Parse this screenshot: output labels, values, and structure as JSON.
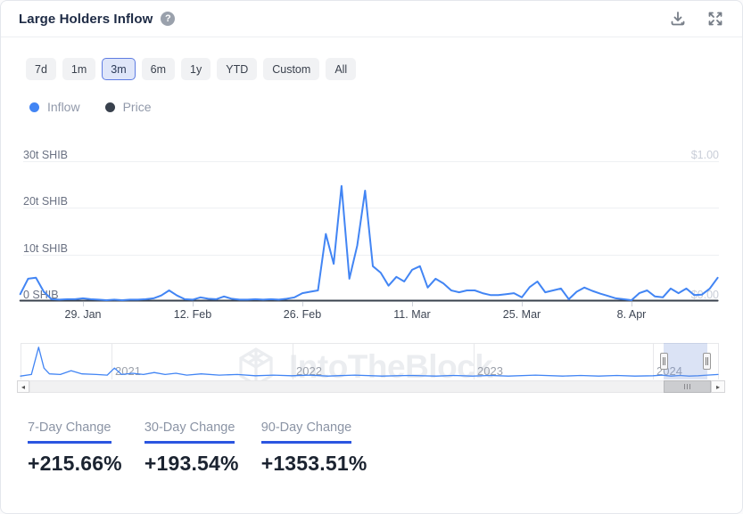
{
  "header": {
    "title": "Large Holders Inflow",
    "help_glyph": "?"
  },
  "toolbar": {
    "ranges": [
      {
        "label": "7d",
        "selected": false
      },
      {
        "label": "1m",
        "selected": false
      },
      {
        "label": "3m",
        "selected": true
      },
      {
        "label": "6m",
        "selected": false
      },
      {
        "label": "1y",
        "selected": false
      },
      {
        "label": "YTD",
        "selected": false
      },
      {
        "label": "Custom",
        "selected": false
      },
      {
        "label": "All",
        "selected": false
      }
    ]
  },
  "legend": [
    {
      "label": "Inflow",
      "color": "#4285f4"
    },
    {
      "label": "Price",
      "color": "#39414d"
    }
  ],
  "watermark": {
    "text": "IntoTheBlock"
  },
  "chart_data": {
    "type": "line",
    "title": "Large Holders Inflow",
    "unit": "SHIB (trillions)",
    "period_shown": "3m (late Jan 2024 - mid Apr 2024, daily points)",
    "ylim": [
      0,
      30
    ],
    "y_ticks": [
      {
        "value": 30,
        "label": "30t SHIB"
      },
      {
        "value": 20,
        "label": "20t SHIB"
      },
      {
        "value": 10,
        "label": "10t SHIB"
      },
      {
        "value": 0,
        "label": "0 SHIB"
      }
    ],
    "y2_axis": {
      "label_top": "$1.00",
      "label_bottom": "$0.00",
      "range": [
        0,
        1
      ]
    },
    "x_ticks": [
      {
        "index": 8,
        "label": "29. Jan"
      },
      {
        "index": 22,
        "label": "12. Feb"
      },
      {
        "index": 36,
        "label": "26. Feb"
      },
      {
        "index": 50,
        "label": "11. Mar"
      },
      {
        "index": 64,
        "label": "25. Mar"
      },
      {
        "index": 78,
        "label": "8. Apr"
      }
    ],
    "series": [
      {
        "name": "Inflow",
        "color": "#4285f4",
        "values_t_shib": [
          1.5,
          4.8,
          5.0,
          2.0,
          0.4,
          0.3,
          0.4,
          0.4,
          0.6,
          0.4,
          0.3,
          0.2,
          0.3,
          0.2,
          0.3,
          0.3,
          0.4,
          0.6,
          1.2,
          2.3,
          1.2,
          0.4,
          0.3,
          0.8,
          0.5,
          0.4,
          1.0,
          0.5,
          0.3,
          0.3,
          0.4,
          0.3,
          0.4,
          0.3,
          0.5,
          0.8,
          1.7,
          2.0,
          2.3,
          14.4,
          8.0,
          24.7,
          4.8,
          11.9,
          23.7,
          7.5,
          6.1,
          3.3,
          5.2,
          4.2,
          6.7,
          7.5,
          2.9,
          4.8,
          3.8,
          2.3,
          1.9,
          2.3,
          2.3,
          1.7,
          1.3,
          1.3,
          1.5,
          1.7,
          0.8,
          3.0,
          4.2,
          1.9,
          2.3,
          2.7,
          0.4,
          2.0,
          2.9,
          2.2,
          1.6,
          1.1,
          0.6,
          0.4,
          0.2,
          1.7,
          2.3,
          1.0,
          0.8,
          2.7,
          1.7,
          2.7,
          1.3,
          1.4,
          2.7,
          5.0
        ]
      },
      {
        "name": "Price",
        "color": "#39414d",
        "axis": "right",
        "note": "flat line at ~$0.00 on the $0-$1 right axis",
        "flat_value_usd": 0.0
      }
    ],
    "navigator": {
      "x_labels": [
        "2021",
        "2022",
        "2023",
        "2024"
      ],
      "x_domain": [
        2020.5,
        2024.365
      ],
      "selection": {
        "from": 2024.06,
        "to": 2024.3
      },
      "points": [
        [
          2020.5,
          0.05
        ],
        [
          2020.56,
          0.1
        ],
        [
          2020.6,
          0.95
        ],
        [
          2020.63,
          0.3
        ],
        [
          2020.66,
          0.12
        ],
        [
          2020.72,
          0.1
        ],
        [
          2020.78,
          0.22
        ],
        [
          2020.84,
          0.12
        ],
        [
          2020.92,
          0.1
        ],
        [
          2020.98,
          0.08
        ],
        [
          2021.02,
          0.3
        ],
        [
          2021.06,
          0.1
        ],
        [
          2021.12,
          0.14
        ],
        [
          2021.18,
          0.1
        ],
        [
          2021.24,
          0.16
        ],
        [
          2021.3,
          0.1
        ],
        [
          2021.36,
          0.14
        ],
        [
          2021.42,
          0.08
        ],
        [
          2021.5,
          0.12
        ],
        [
          2021.6,
          0.08
        ],
        [
          2021.7,
          0.1
        ],
        [
          2021.8,
          0.06
        ],
        [
          2021.9,
          0.08
        ],
        [
          2022.0,
          0.06
        ],
        [
          2022.1,
          0.08
        ],
        [
          2022.2,
          0.05
        ],
        [
          2022.35,
          0.08
        ],
        [
          2022.5,
          0.05
        ],
        [
          2022.65,
          0.07
        ],
        [
          2022.8,
          0.05
        ],
        [
          2022.9,
          0.07
        ],
        [
          2023.0,
          0.05
        ],
        [
          2023.1,
          0.07
        ],
        [
          2023.2,
          0.05
        ],
        [
          2023.35,
          0.08
        ],
        [
          2023.5,
          0.05
        ],
        [
          2023.6,
          0.07
        ],
        [
          2023.7,
          0.05
        ],
        [
          2023.8,
          0.07
        ],
        [
          2023.9,
          0.05
        ],
        [
          2024.0,
          0.06
        ],
        [
          2024.05,
          0.08
        ],
        [
          2024.1,
          0.05
        ],
        [
          2024.15,
          0.07
        ],
        [
          2024.2,
          0.05
        ],
        [
          2024.25,
          0.06
        ],
        [
          2024.3,
          0.08
        ],
        [
          2024.36,
          0.1
        ]
      ]
    }
  },
  "stats": [
    {
      "label": "7-Day Change",
      "value": "+215.66%"
    },
    {
      "label": "30-Day Change",
      "value": "+193.54%"
    },
    {
      "label": "90-Day Change",
      "value": "+1353.51%"
    }
  ],
  "scrollbar": {
    "left_arrow": "◂",
    "right_arrow": "▸"
  }
}
